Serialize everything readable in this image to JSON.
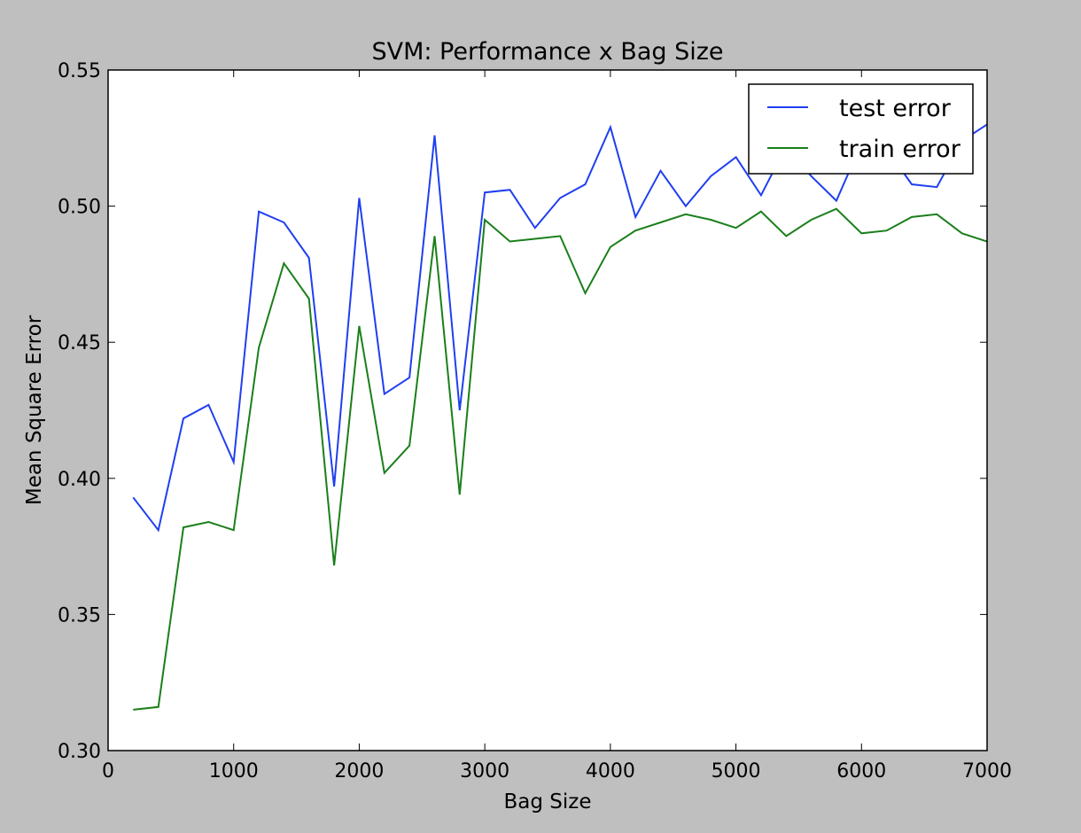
{
  "chart_data": {
    "type": "line",
    "title": "SVM: Performance x Bag Size",
    "xlabel": "Bag Size",
    "ylabel": "Mean Square Error",
    "xlim": [
      0,
      7000
    ],
    "ylim": [
      0.3,
      0.55
    ],
    "xticks": [
      0,
      1000,
      2000,
      3000,
      4000,
      5000,
      6000,
      7000
    ],
    "xtick_labels": [
      "0",
      "1000",
      "2000",
      "3000",
      "4000",
      "5000",
      "6000",
      "7000"
    ],
    "yticks": [
      0.3,
      0.35,
      0.4,
      0.45,
      0.5,
      0.55
    ],
    "ytick_labels": [
      "0.30",
      "0.35",
      "0.40",
      "0.45",
      "0.50",
      "0.55"
    ],
    "grid": false,
    "legend_position": "top-right",
    "background": "#bfbfbf",
    "plot_background": "#ffffff",
    "x": [
      200,
      400,
      600,
      800,
      1000,
      1200,
      1400,
      1600,
      1800,
      2000,
      2200,
      2400,
      2600,
      2800,
      3000,
      3200,
      3400,
      3600,
      3800,
      4000,
      4200,
      4400,
      4600,
      4800,
      5000,
      5200,
      5400,
      5600,
      5800,
      6000,
      6200,
      6400,
      6600,
      6800,
      7000
    ],
    "series": [
      {
        "name": "test error",
        "color": "#1f3ff0",
        "values": [
          0.393,
          0.381,
          0.422,
          0.427,
          0.406,
          0.498,
          0.494,
          0.481,
          0.397,
          0.503,
          0.431,
          0.437,
          0.526,
          0.425,
          0.505,
          0.506,
          0.492,
          0.503,
          0.508,
          0.529,
          0.496,
          0.513,
          0.5,
          0.511,
          0.518,
          0.504,
          0.522,
          0.511,
          0.502,
          0.523,
          0.521,
          0.508,
          0.507,
          0.524,
          0.53
        ]
      },
      {
        "name": "train error",
        "color": "#1a7f1a",
        "values": [
          0.315,
          0.316,
          0.382,
          0.384,
          0.381,
          0.448,
          0.479,
          0.466,
          0.368,
          0.456,
          0.402,
          0.412,
          0.489,
          0.394,
          0.495,
          0.487,
          0.488,
          0.489,
          0.468,
          0.485,
          0.491,
          0.494,
          0.497,
          0.495,
          0.492,
          0.498,
          0.489,
          0.495,
          0.499,
          0.49,
          0.491,
          0.496,
          0.497,
          0.49,
          0.487
        ]
      }
    ]
  }
}
